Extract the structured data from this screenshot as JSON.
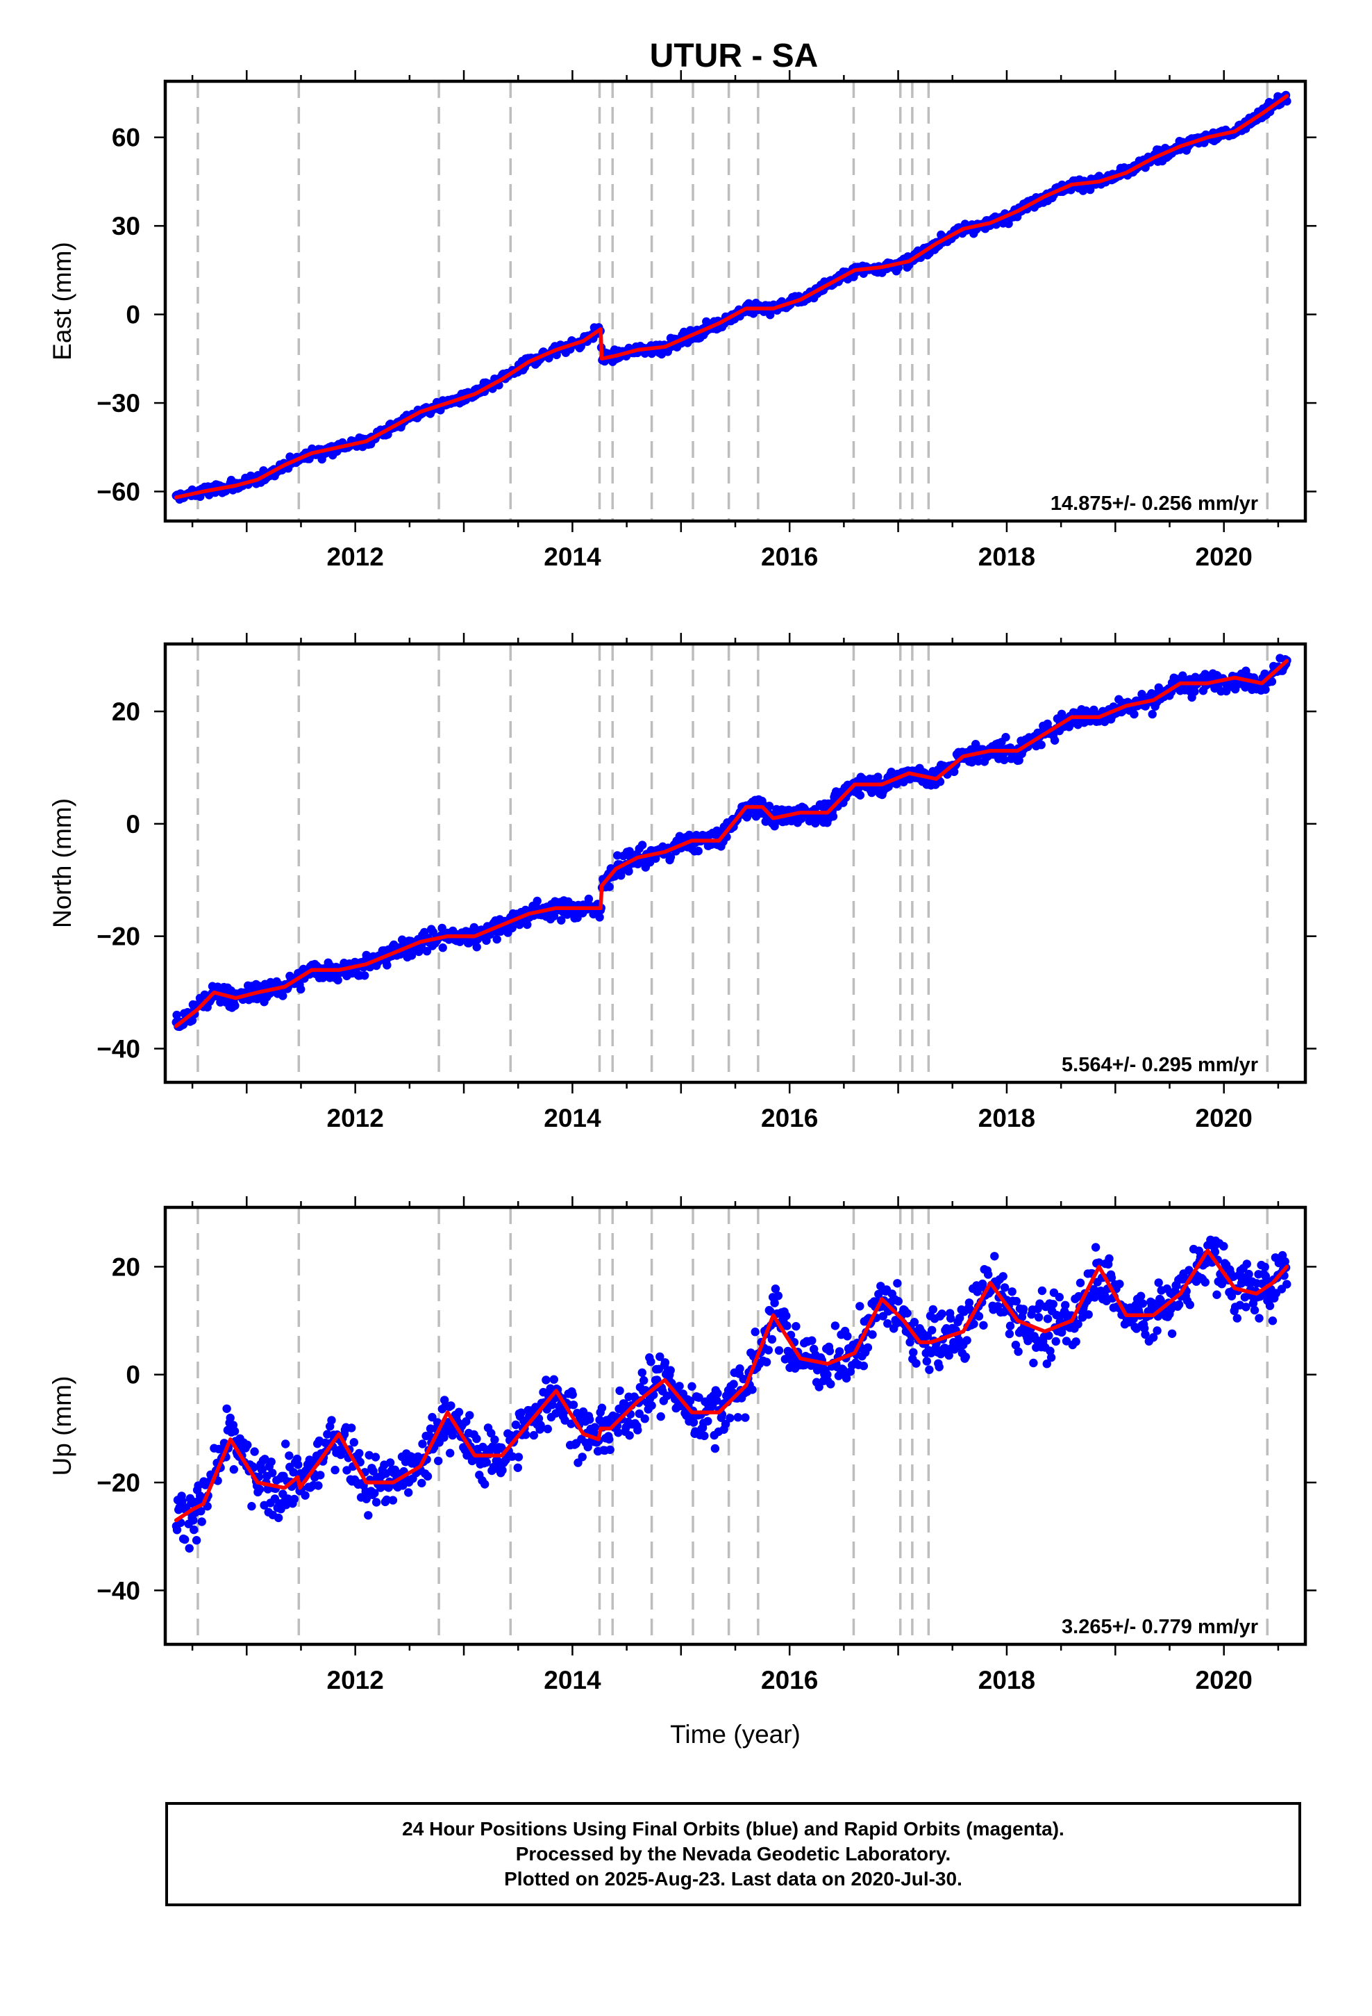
{
  "title": "UTUR - SA",
  "footer": {
    "line1": "24 Hour Positions Using Final Orbits (blue) and Rapid Orbits (magenta).",
    "line2": "Processed by the Nevada Geodetic Laboratory.",
    "line3": "Plotted on 2025-Aug-23. Last data on 2020-Jul-30."
  },
  "colors": {
    "observations": "#0000ff",
    "model": "#ff0000",
    "equipment_change_lines": "#bdbdbd"
  },
  "chart_data": [
    {
      "type": "scatter",
      "ylabel": "East (mm)",
      "xlabel": "",
      "xlim": [
        2010.25,
        2020.75
      ],
      "ylim": [
        -70,
        79
      ],
      "xticks": [
        2012,
        2014,
        2016,
        2018,
        2020
      ],
      "xtick_labels": [
        "2012",
        "2014",
        "2016",
        "2018",
        "2020"
      ],
      "yticks": [
        -60,
        -30,
        0,
        30,
        60
      ],
      "ytick_labels": [
        "−60",
        "−30",
        "0",
        "30",
        "60"
      ],
      "velocity_label": "14.875+/- 0.256 mm/yr",
      "grid": false,
      "dashed_vertical_lines": [
        2010.55,
        2011.48,
        2012.77,
        2013.43,
        2014.25,
        2014.37,
        2014.73,
        2015.11,
        2015.44,
        2015.71,
        2016.59,
        2017.02,
        2017.13,
        2017.28,
        2020.4
      ],
      "series": [
        {
          "x": [
            2010.35,
            2010.6,
            2010.9,
            2011.1,
            2011.35,
            2011.6,
            2011.85,
            2012.1,
            2012.35,
            2012.6,
            2012.85,
            2013.1,
            2013.35,
            2013.6,
            2013.85,
            2014.1,
            2014.26,
            2014.27,
            2014.4,
            2014.6,
            2014.85,
            2015.1,
            2015.35,
            2015.6,
            2015.75,
            2015.85,
            2016.1,
            2016.35,
            2016.6,
            2016.85,
            2017.1,
            2017.35,
            2017.6,
            2017.85,
            2018.1,
            2018.35,
            2018.6,
            2018.85,
            2019.1,
            2019.35,
            2019.6,
            2019.85,
            2020.1,
            2020.35,
            2020.58
          ],
          "y": [
            -62,
            -60,
            -58,
            -56,
            -51,
            -47,
            -45,
            -43,
            -38,
            -33,
            -30,
            -27,
            -22,
            -16,
            -12,
            -9,
            -5,
            -15,
            -14,
            -12,
            -11,
            -7,
            -3,
            2,
            2,
            2,
            5,
            10,
            15,
            16,
            18,
            24,
            29,
            31,
            35,
            40,
            44,
            45,
            48,
            53,
            57,
            60,
            62,
            68,
            74
          ]
        }
      ]
    },
    {
      "type": "scatter",
      "ylabel": "North (mm)",
      "xlabel": "",
      "xlim": [
        2010.25,
        2020.75
      ],
      "ylim": [
        -46,
        32
      ],
      "xticks": [
        2012,
        2014,
        2016,
        2018,
        2020
      ],
      "xtick_labels": [
        "2012",
        "2014",
        "2016",
        "2018",
        "2020"
      ],
      "yticks": [
        -40,
        -20,
        0,
        20
      ],
      "ytick_labels": [
        "−40",
        "−20",
        "0",
        "20"
      ],
      "velocity_label": "5.564+/- 0.295 mm/yr",
      "grid": false,
      "dashed_vertical_lines": [
        2010.55,
        2011.48,
        2012.77,
        2013.43,
        2014.25,
        2014.37,
        2014.73,
        2015.11,
        2015.44,
        2015.71,
        2016.59,
        2017.02,
        2017.13,
        2017.28,
        2020.4
      ],
      "series": [
        {
          "x": [
            2010.35,
            2010.55,
            2010.7,
            2010.9,
            2011.1,
            2011.35,
            2011.6,
            2011.85,
            2012.1,
            2012.35,
            2012.6,
            2012.85,
            2013.1,
            2013.35,
            2013.6,
            2013.85,
            2014.1,
            2014.26,
            2014.27,
            2014.4,
            2014.6,
            2014.85,
            2015.1,
            2015.35,
            2015.6,
            2015.75,
            2015.85,
            2016.1,
            2016.35,
            2016.6,
            2016.85,
            2017.1,
            2017.35,
            2017.6,
            2017.85,
            2018.1,
            2018.35,
            2018.6,
            2018.85,
            2019.1,
            2019.35,
            2019.6,
            2019.85,
            2020.1,
            2020.35,
            2020.58
          ],
          "y": [
            -36,
            -33,
            -30,
            -31,
            -30,
            -29,
            -26,
            -26,
            -25,
            -23,
            -21,
            -20,
            -20,
            -18,
            -16,
            -15,
            -15,
            -15,
            -11,
            -8,
            -6,
            -5,
            -3,
            -3,
            3,
            3,
            1,
            2,
            2,
            7,
            7,
            9,
            8,
            12,
            13,
            13,
            16,
            19,
            19,
            21,
            22,
            25,
            25,
            26,
            25,
            29
          ]
        }
      ]
    },
    {
      "type": "scatter",
      "ylabel": "Up (mm)",
      "xlabel": "Time (year)",
      "xlim": [
        2010.25,
        2020.75
      ],
      "ylim": [
        -50,
        31
      ],
      "xticks": [
        2012,
        2014,
        2016,
        2018,
        2020
      ],
      "xtick_labels": [
        "2012",
        "2014",
        "2016",
        "2018",
        "2020"
      ],
      "yticks": [
        -40,
        -20,
        0,
        20
      ],
      "ytick_labels": [
        "−40",
        "−20",
        "0",
        "20"
      ],
      "velocity_label": "3.265+/- 0.779 mm/yr",
      "grid": false,
      "dashed_vertical_lines": [
        2010.55,
        2011.48,
        2012.77,
        2013.43,
        2014.25,
        2014.37,
        2014.73,
        2015.11,
        2015.44,
        2015.71,
        2016.59,
        2017.02,
        2017.13,
        2017.28,
        2020.4
      ],
      "series": [
        {
          "x": [
            2010.35,
            2010.5,
            2010.6,
            2010.85,
            2011.1,
            2011.35,
            2011.47,
            2011.49,
            2011.6,
            2011.85,
            2012.1,
            2012.35,
            2012.6,
            2012.85,
            2013.1,
            2013.35,
            2013.6,
            2013.85,
            2014.1,
            2014.24,
            2014.26,
            2014.35,
            2014.6,
            2014.85,
            2015.1,
            2015.35,
            2015.6,
            2015.85,
            2016.1,
            2016.35,
            2016.6,
            2016.85,
            2017.05,
            2017.2,
            2017.3,
            2017.6,
            2017.85,
            2018.1,
            2018.35,
            2018.6,
            2018.85,
            2019.1,
            2019.35,
            2019.6,
            2019.85,
            2020.1,
            2020.3,
            2020.45,
            2020.58
          ],
          "y": [
            -27,
            -25,
            -24,
            -12,
            -20,
            -21,
            -19,
            -21,
            -18,
            -11,
            -20,
            -20,
            -17,
            -7,
            -15,
            -15,
            -9,
            -3,
            -11,
            -12,
            -10,
            -10,
            -5,
            -1,
            -7,
            -7,
            -2,
            11,
            3,
            2,
            4,
            14,
            10,
            6,
            6,
            8,
            17,
            10,
            8,
            10,
            20,
            11,
            11,
            15,
            23,
            16,
            15,
            17,
            20
          ]
        }
      ]
    }
  ]
}
